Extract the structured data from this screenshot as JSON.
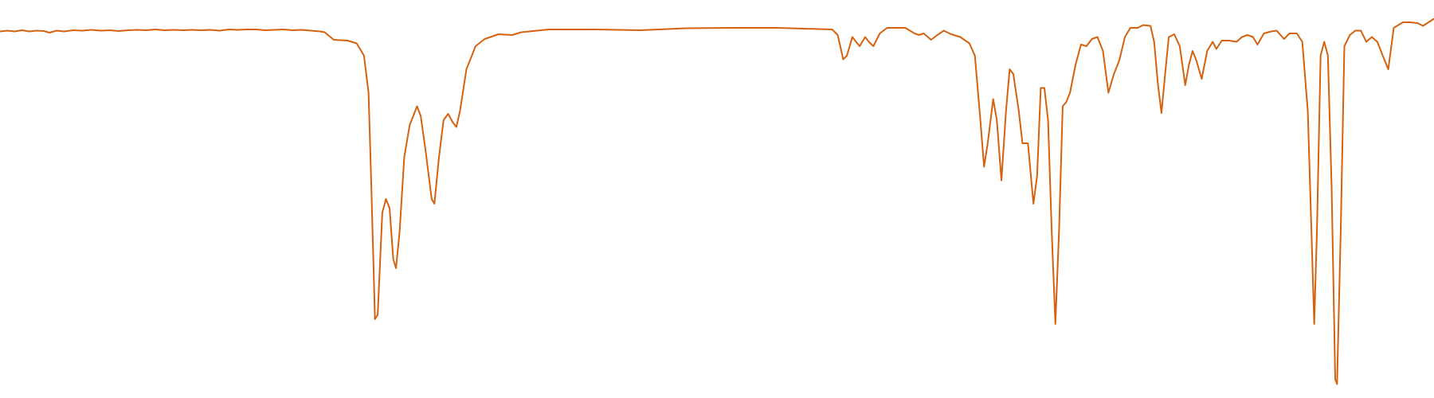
{
  "chart_data": {
    "type": "line",
    "color": "#d4620f",
    "xlim": [
      0,
      1568
    ],
    "ylim": [
      0,
      100
    ],
    "x": [
      0,
      8,
      16,
      24,
      32,
      40,
      48,
      54,
      62,
      70,
      80,
      90,
      100,
      110,
      120,
      130,
      140,
      150,
      160,
      170,
      180,
      190,
      200,
      210,
      220,
      230,
      240,
      250,
      260,
      270,
      280,
      290,
      300,
      310,
      320,
      330,
      340,
      350,
      355,
      365,
      380,
      390,
      398,
      403,
      406,
      410,
      413,
      418,
      422,
      426,
      430,
      433,
      437,
      442,
      448,
      456,
      460,
      465,
      472,
      475,
      480,
      485,
      490,
      495,
      499,
      503,
      510,
      520,
      530,
      545,
      560,
      570,
      600,
      650,
      700,
      750,
      800,
      850,
      910,
      916,
      922,
      926,
      932,
      936,
      940,
      946,
      950,
      955,
      962,
      970,
      990,
      1000,
      1005,
      1010,
      1018,
      1025,
      1032,
      1040,
      1050,
      1060,
      1066,
      1072,
      1076,
      1080,
      1086,
      1090,
      1095,
      1100,
      1104,
      1108,
      1114,
      1118,
      1124,
      1130,
      1134,
      1138,
      1142,
      1146,
      1150,
      1154,
      1158,
      1162,
      1166,
      1170,
      1176,
      1182,
      1188,
      1194,
      1200,
      1206,
      1212,
      1218,
      1224,
      1230,
      1236,
      1244,
      1250,
      1258,
      1262,
      1266,
      1270,
      1274,
      1278,
      1284,
      1290,
      1296,
      1300,
      1304,
      1308,
      1314,
      1320,
      1326,
      1330,
      1336,
      1344,
      1352,
      1358,
      1364,
      1370,
      1375,
      1382,
      1390,
      1396,
      1404,
      1410,
      1418,
      1424,
      1430,
      1434,
      1437,
      1440,
      1444,
      1448,
      1452,
      1456,
      1460,
      1462,
      1466,
      1470,
      1476,
      1482,
      1488,
      1494,
      1500,
      1506,
      1512,
      1518,
      1524,
      1534,
      1542,
      1550,
      1556,
      1568
    ],
    "values": [
      92.1,
      92.3,
      92.1,
      92.4,
      92.1,
      92.3,
      92.2,
      91.8,
      92.3,
      92.1,
      92.4,
      92.3,
      92.5,
      92.3,
      92.4,
      92.2,
      92.4,
      92.5,
      92.4,
      92.6,
      92.4,
      92.5,
      92.4,
      92.5,
      92.4,
      92.5,
      92.3,
      92.6,
      92.5,
      92.6,
      92.6,
      92.4,
      92.5,
      92.6,
      92.4,
      92.5,
      92.3,
      92.1,
      91.9,
      90,
      89.8,
      89.1,
      86,
      76.7,
      53.5,
      19.8,
      20.9,
      46.5,
      50,
      47.7,
      34.9,
      32.6,
      41.9,
      60.5,
      68.6,
      73.3,
      70.9,
      62.8,
      50,
      48.8,
      60.5,
      69.8,
      71.4,
      69.3,
      68.1,
      72.1,
      82.6,
      88.4,
      90.2,
      91.4,
      91.2,
      91.9,
      92.6,
      92.6,
      92.4,
      92.9,
      93,
      93,
      92.6,
      91.2,
      85.1,
      86,
      90.7,
      89.5,
      88.4,
      90.7,
      89.5,
      88.4,
      91.6,
      93,
      93,
      91.6,
      91.2,
      91.6,
      90,
      91.2,
      92.3,
      91.4,
      90.7,
      89.1,
      86,
      69.8,
      58.1,
      64,
      75.1,
      69.8,
      54.7,
      72.1,
      82.6,
      81.4,
      72.1,
      64,
      64,
      48.8,
      55.8,
      77.9,
      77.9,
      69.8,
      41.9,
      18.6,
      41.9,
      73.3,
      74.4,
      76.7,
      83.7,
      88.8,
      88.4,
      90.2,
      90.7,
      87.2,
      76.7,
      81.4,
      84.9,
      90.7,
      93,
      93,
      93.7,
      93.5,
      89.5,
      79.1,
      71.6,
      81.4,
      90.7,
      91.4,
      88.4,
      78.6,
      83.7,
      87.2,
      84.9,
      80.2,
      87.2,
      89.5,
      87.7,
      89.8,
      89.8,
      89.5,
      90.7,
      91.2,
      90.7,
      88.8,
      91.6,
      92.1,
      92.3,
      90.2,
      91.6,
      91.6,
      89.5,
      72.1,
      41.9,
      18.6,
      41.9,
      86,
      89.5,
      86,
      53.5,
      4.7,
      3.5,
      41.9,
      88.4,
      91.2,
      92.3,
      92.3,
      89.5,
      90.7,
      89.5,
      86,
      82.6,
      93,
      94.4,
      94.4,
      94.2,
      93.5,
      95.3
    ]
  }
}
